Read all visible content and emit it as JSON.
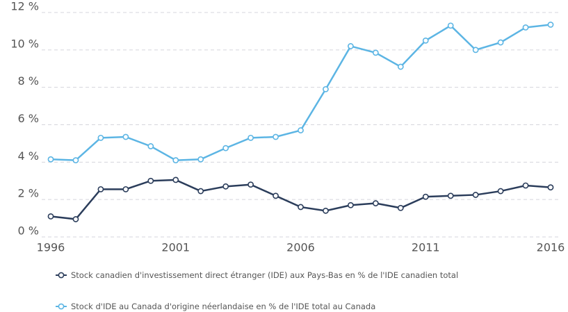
{
  "chart_data": {
    "type": "line",
    "x": [
      1996,
      1997,
      1998,
      1999,
      2000,
      2001,
      2002,
      2003,
      2004,
      2005,
      2006,
      2007,
      2008,
      2009,
      2010,
      2011,
      2012,
      2013,
      2014,
      2015,
      2016
    ],
    "series": [
      {
        "name": "Stock canadien d'investissement direct étranger (IDE) aux Pays-Bas en % de l'IDE canadien total",
        "color": "#2b3d5b",
        "values": [
          1.1,
          0.95,
          2.55,
          2.55,
          3.0,
          3.05,
          2.45,
          2.7,
          2.8,
          2.2,
          1.6,
          1.4,
          1.7,
          1.8,
          1.55,
          2.15,
          2.2,
          2.25,
          2.45,
          2.75,
          2.65
        ]
      },
      {
        "name": "Stock d'IDE au Canada d'origine néerlandaise en % de l'IDE total au Canada",
        "color": "#5cb5e4",
        "values": [
          4.15,
          4.1,
          5.3,
          5.35,
          4.85,
          4.1,
          4.15,
          4.75,
          5.3,
          5.35,
          5.7,
          7.9,
          10.2,
          9.85,
          9.1,
          10.5,
          11.3,
          10.0,
          10.4,
          11.2,
          11.35
        ]
      }
    ],
    "xlim": [
      1996,
      2016
    ],
    "xticks": [
      1996,
      2001,
      2006,
      2011,
      2016
    ],
    "ylim": [
      0,
      12
    ],
    "yticks": [
      {
        "value": 0,
        "label": "0 %"
      },
      {
        "value": 2,
        "label": "2 %"
      },
      {
        "value": 4,
        "label": "4 %"
      },
      {
        "value": 6,
        "label": "6 %"
      },
      {
        "value": 8,
        "label": "8 %"
      },
      {
        "value": 10,
        "label": "10 %"
      },
      {
        "value": 12,
        "label": "12 %"
      }
    ],
    "grid": true,
    "legend": "bottom"
  }
}
